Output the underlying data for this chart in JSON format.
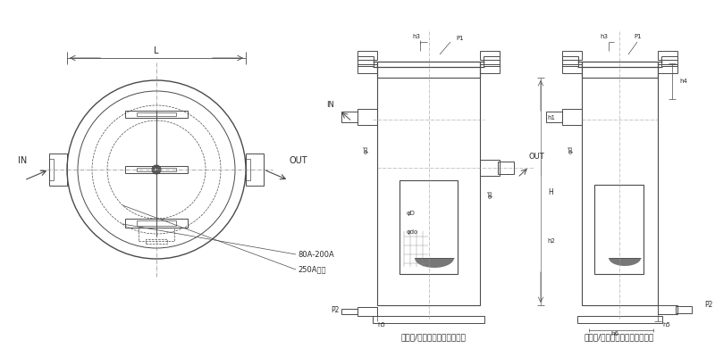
{
  "bg_color": "#ffffff",
  "line_color": "#4a4a4a",
  "fig_width": 8.0,
  "fig_height": 4.0,
  "label_80A": "80A-200A",
  "label_250A": "250A以上",
  "label_IN": "IN",
  "label_OUT": "OUT",
  "label_L": "L",
  "label_h3_1": "h3",
  "label_P1_1": "P1",
  "label_h3_2": "h3",
  "label_P1_2": "P1",
  "label_h4": "h4",
  "label_IN2": "IN",
  "label_phid": "φd",
  "label_phiD": "φD",
  "label_phido": "φdo",
  "label_OUT2": "OUT",
  "label_H": "H",
  "label_h1": "h1",
  "label_h2": "h2",
  "label_P2_1": "P2",
  "label_h5_1": "h5",
  "label_phid2": "φd",
  "label_P2_2": "P2",
  "label_h5_2": "h5",
  "label_h6": "h6",
  "label_plug": "ドレン/ベント：プラグタイプ",
  "label_flange": "ドレン/ベント：フランジタイプ"
}
